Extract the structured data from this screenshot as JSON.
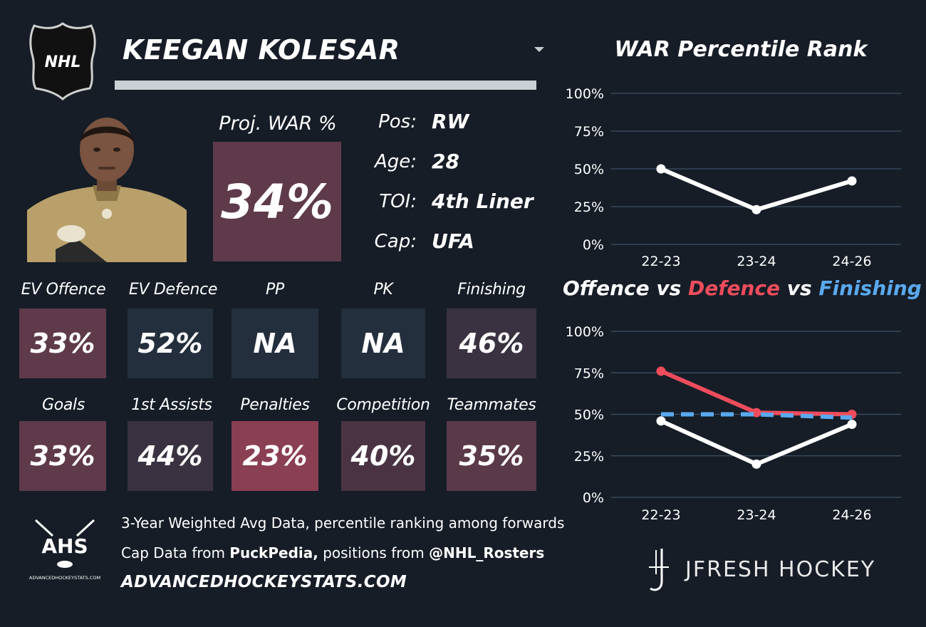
{
  "player": {
    "name": "KEEGAN KOLESAR",
    "logo_text": "NHL",
    "proj_war_label": "Proj. WAR %",
    "proj_war_value": "34%",
    "proj_war_color": "#5e3a4a",
    "info": [
      {
        "label": "Pos:",
        "value": "RW"
      },
      {
        "label": "Age:",
        "value": "28"
      },
      {
        "label": "TOI:",
        "value": "4th Liner"
      },
      {
        "label": "Cap:",
        "value": "UFA"
      }
    ]
  },
  "metrics_row1": [
    {
      "label": "EV Offence",
      "value": "33%",
      "color": "#5e3a4a"
    },
    {
      "label": "EV Defence",
      "value": "52%",
      "color": "#242f3d"
    },
    {
      "label": "PP",
      "value": "NA",
      "color": "#242f3d"
    },
    {
      "label": "PK",
      "value": "NA",
      "color": "#242f3d"
    },
    {
      "label": "Finishing",
      "value": "46%",
      "color": "#3a3241"
    }
  ],
  "metrics_row2": [
    {
      "label": "Goals",
      "value": "33%",
      "color": "#5e3a4a"
    },
    {
      "label": "1st Assists",
      "value": "44%",
      "color": "#3a3241"
    },
    {
      "label": "Penalties",
      "value": "23%",
      "color": "#8a3f53"
    },
    {
      "label": "Competition",
      "value": "40%",
      "color": "#4a3444"
    },
    {
      "label": "Teammates",
      "value": "35%",
      "color": "#5a3949"
    }
  ],
  "footer": {
    "line1": "3-Year Weighted Avg Data, percentile ranking among forwards",
    "line2_prefix": "Cap Data from ",
    "line2_bold1": "PuckPedia,",
    "line2_mid": " positions from ",
    "line2_bold2": "@NHL_Rosters",
    "site": "ADVANCEDHOCKEYSTATS.COM",
    "ahs_logo_text": "AHS",
    "ahs_logo_sub": "ADVANCEDHOCKEYSTATS.COM",
    "brand": "JFRESH HOCKEY"
  },
  "chart_titles": {
    "war_title": "WAR Percentile Rank",
    "ovd_part1": "Offence",
    "ovd_vs1": " vs ",
    "ovd_part2": "Defence",
    "ovd_vs2": " vs ",
    "ovd_part3": "Finishing"
  },
  "colors": {
    "background": "#161d27",
    "offence": "#ffffff",
    "defence": "#ee4c5c",
    "finishing": "#5aa9ee",
    "gridline": "#3f5066"
  },
  "chart_data": [
    {
      "type": "line",
      "title": "WAR Percentile Rank",
      "categories": [
        "22-23",
        "23-24",
        "24-26"
      ],
      "series": [
        {
          "values": [
            50,
            23,
            42
          ],
          "color": "#ffffff"
        }
      ],
      "ylim": [
        0,
        100
      ],
      "yticks": [
        "0%",
        "25%",
        "50%",
        "75%",
        "100%"
      ],
      "grid": true
    },
    {
      "type": "line",
      "title": "Offence vs Defence vs Finishing",
      "categories": [
        "22-23",
        "23-24",
        "24-26"
      ],
      "series": [
        {
          "name": "Defence",
          "values": [
            76,
            51,
            50
          ],
          "color": "#ee4c5c",
          "style": "solid"
        },
        {
          "name": "Finishing",
          "values": [
            50,
            50,
            48
          ],
          "color": "#5aa9ee",
          "style": "dashed"
        },
        {
          "name": "Offence",
          "values": [
            46,
            20,
            44
          ],
          "color": "#ffffff",
          "style": "solid"
        }
      ],
      "ylim": [
        0,
        100
      ],
      "yticks": [
        "0%",
        "25%",
        "50%",
        "75%",
        "100%"
      ],
      "grid": true
    }
  ]
}
